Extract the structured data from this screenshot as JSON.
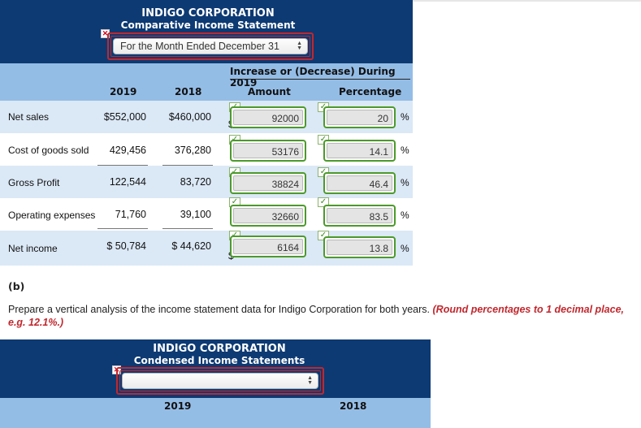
{
  "statement1": {
    "company": "INDIGO CORPORATION",
    "title": "Comparative Income Statement",
    "period_select": "For the Month Ended December 31",
    "col_group": "Increase or (Decrease) During 2019",
    "col_2019": "2019",
    "col_2018": "2018",
    "col_amount": "Amount",
    "col_percentage": "Percentage",
    "dollar": "$",
    "percent_sign": "%",
    "rows": [
      {
        "label": "Net sales",
        "v2019": "$552,000",
        "v2018": "$460,000",
        "amount": "92000",
        "pct": "20",
        "dollar": "$"
      },
      {
        "label": "Cost of goods sold",
        "v2019": "429,456",
        "v2018": "376,280",
        "amount": "53176",
        "pct": "14.1"
      },
      {
        "label": "Gross Profit",
        "v2019": "122,544",
        "v2018": "83,720",
        "amount": "38824",
        "pct": "46.4"
      },
      {
        "label": "Operating expenses",
        "v2019": "71,760",
        "v2018": "39,100",
        "amount": "32660",
        "pct": "83.5"
      },
      {
        "label": "Net income",
        "v2019": "$ 50,784",
        "v2018": "$ 44,620",
        "amount": "6164",
        "pct": "13.8",
        "dollar": "$"
      }
    ]
  },
  "part_b": {
    "label": "(b)",
    "prompt": "Prepare a vertical analysis of the income statement data for Indigo Corporation for both years.",
    "hint": "(Round percentages to 1 decimal place, e.g. 12.1%.)"
  },
  "statement2": {
    "company": "INDIGO CORPORATION",
    "title": "Condensed Income Statements",
    "select_value": "",
    "col_2019": "2019",
    "col_2018": "2018"
  },
  "colors": {
    "header_bg": "#0d3a73",
    "subheader_bg": "#94bde6",
    "row_shade": "#dbe8f6",
    "correct_green": "#4c9a2a",
    "error_red": "#c1272d"
  }
}
